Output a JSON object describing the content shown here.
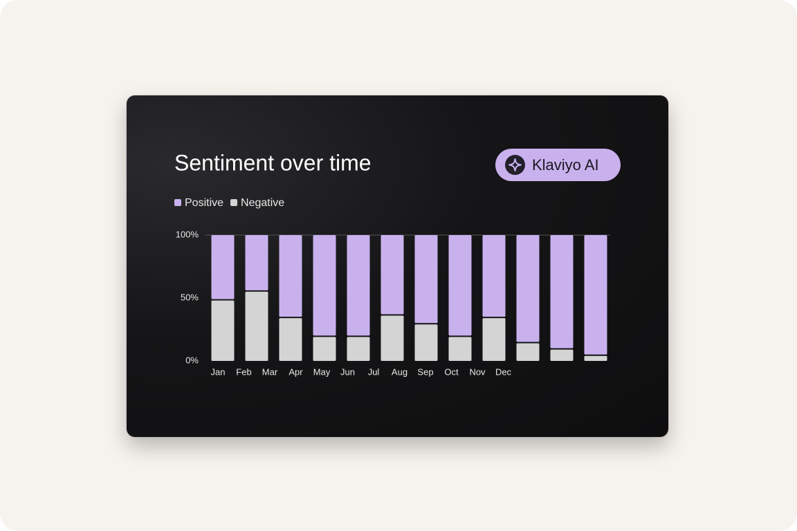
{
  "chart_data": {
    "type": "stacked_bar",
    "title": "Sentiment over time",
    "badge": "Klaviyo AI",
    "categories": [
      "Jan",
      "Feb",
      "Mar",
      "Apr",
      "May",
      "Jun",
      "Jul",
      "Aug",
      "Sep",
      "Oct",
      "Nov",
      "Dec"
    ],
    "series": [
      {
        "name": "Positive",
        "color": "#c9b1ee",
        "values": [
          52,
          45,
          66,
          81,
          81,
          64,
          71,
          81,
          66,
          86,
          91,
          96
        ]
      },
      {
        "name": "Negative",
        "color": "#d4d4d4",
        "values": [
          48,
          55,
          34,
          19,
          19,
          36,
          29,
          19,
          34,
          14,
          9,
          4
        ]
      }
    ],
    "ylim": [
      0,
      100
    ],
    "yticks": [
      {
        "value": 0,
        "label": "0%"
      },
      {
        "value": 50,
        "label": "50%"
      },
      {
        "value": 100,
        "label": "100%"
      }
    ]
  }
}
